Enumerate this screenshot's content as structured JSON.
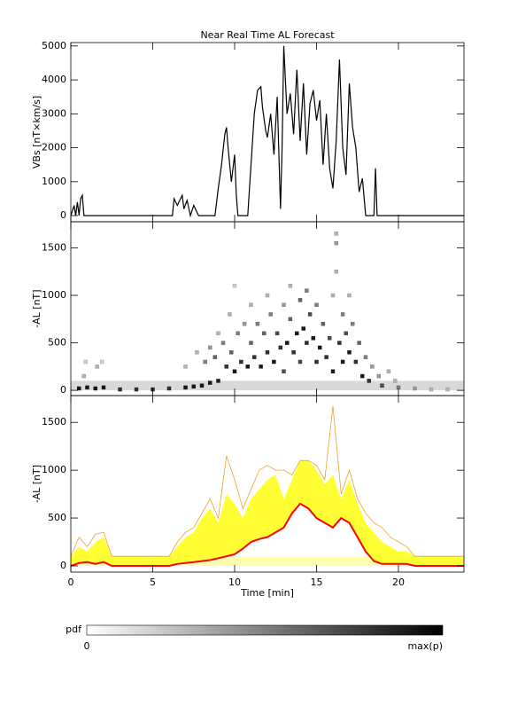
{
  "chart_data": [
    {
      "type": "line",
      "title": "Near Real Time AL Forecast",
      "ylabel": "VBs [nT×km/s]",
      "color": "#000000",
      "x": [
        0,
        0.2,
        0.3,
        0.4,
        0.5,
        0.6,
        0.7,
        0.8,
        0.9,
        1.0,
        6.2,
        6.3,
        6.5,
        6.6,
        6.8,
        6.9,
        7.1,
        7.3,
        7.5,
        7.8,
        8.8,
        9.0,
        9.2,
        9.4,
        9.5,
        9.6,
        9.8,
        10.0,
        10.1,
        10.2,
        10.8,
        11.0,
        11.2,
        11.4,
        11.6,
        11.7,
        11.9,
        12.0,
        12.2,
        12.4,
        12.6,
        12.8,
        12.9,
        13.0,
        13.2,
        13.4,
        13.6,
        13.8,
        14.0,
        14.2,
        14.4,
        14.6,
        14.8,
        15.0,
        15.2,
        15.4,
        15.6,
        15.8,
        16.0,
        16.2,
        16.4,
        16.6,
        16.8,
        17.0,
        17.2,
        17.4,
        17.6,
        17.8,
        18.0,
        18.5,
        18.6,
        18.7,
        20.0,
        24
      ],
      "values": [
        0,
        300,
        0,
        400,
        0,
        500,
        600,
        0,
        0,
        0,
        0,
        500,
        300,
        400,
        600,
        200,
        450,
        0,
        300,
        0,
        0,
        800,
        1500,
        2400,
        2600,
        2000,
        1000,
        1800,
        600,
        0,
        0,
        1500,
        3000,
        3700,
        3800,
        3200,
        2500,
        2300,
        3000,
        1800,
        3500,
        200,
        2000,
        5000,
        3000,
        3600,
        2400,
        4300,
        2200,
        3900,
        1800,
        3300,
        3700,
        2800,
        3400,
        1500,
        3000,
        1400,
        800,
        2200,
        4600,
        2000,
        1200,
        3900,
        2600,
        2000,
        700,
        1100,
        0,
        0,
        1400,
        0,
        0,
        0
      ],
      "xlim": [
        0,
        24
      ],
      "xticks": [
        0,
        5,
        10,
        15,
        20
      ],
      "xtick_labels": false,
      "ylim": [
        -180,
        5100
      ],
      "yticks": [
        0,
        1000,
        2000,
        3000,
        4000,
        5000
      ]
    },
    {
      "type": "heatmap",
      "ylabel": "-AL [nT]",
      "band": [
        0,
        100
      ],
      "band_p": 0.15,
      "cells": [
        [
          0.5,
          20,
          0.9
        ],
        [
          1,
          30,
          0.9
        ],
        [
          1.5,
          20,
          0.9
        ],
        [
          2,
          30,
          0.9
        ],
        [
          3,
          10,
          0.8
        ],
        [
          4,
          10,
          0.8
        ],
        [
          5,
          10,
          0.8
        ],
        [
          6,
          20,
          0.8
        ],
        [
          7,
          30,
          0.9
        ],
        [
          7.5,
          40,
          0.9
        ],
        [
          8,
          50,
          0.9
        ],
        [
          8.5,
          80,
          0.9
        ],
        [
          9,
          100,
          0.9
        ],
        [
          0.8,
          150,
          0.3
        ],
        [
          0.9,
          300,
          0.2
        ],
        [
          1.6,
          250,
          0.3
        ],
        [
          1.9,
          300,
          0.2
        ],
        [
          7,
          250,
          0.3
        ],
        [
          7.7,
          400,
          0.3
        ],
        [
          8.2,
          300,
          0.5
        ],
        [
          8.5,
          450,
          0.4
        ],
        [
          8.8,
          350,
          0.6
        ],
        [
          9,
          600,
          0.3
        ],
        [
          9.3,
          500,
          0.5
        ],
        [
          9.5,
          250,
          0.8
        ],
        [
          9.7,
          800,
          0.3
        ],
        [
          9.8,
          400,
          0.6
        ],
        [
          10,
          200,
          0.9
        ],
        [
          10,
          1100,
          0.2
        ],
        [
          10.2,
          600,
          0.5
        ],
        [
          10.4,
          300,
          0.8
        ],
        [
          10.6,
          700,
          0.4
        ],
        [
          10.8,
          250,
          0.9
        ],
        [
          11,
          500,
          0.6
        ],
        [
          11,
          900,
          0.3
        ],
        [
          11.2,
          350,
          0.8
        ],
        [
          11.4,
          700,
          0.5
        ],
        [
          11.6,
          250,
          0.9
        ],
        [
          11.8,
          600,
          0.6
        ],
        [
          12,
          400,
          0.8
        ],
        [
          12,
          1000,
          0.3
        ],
        [
          12.2,
          800,
          0.5
        ],
        [
          12.4,
          300,
          0.9
        ],
        [
          12.6,
          600,
          0.7
        ],
        [
          12.8,
          450,
          0.8
        ],
        [
          13,
          900,
          0.4
        ],
        [
          13,
          200,
          0.7
        ],
        [
          13.2,
          500,
          0.9
        ],
        [
          13.4,
          1100,
          0.3
        ],
        [
          13.4,
          750,
          0.6
        ],
        [
          13.6,
          400,
          0.8
        ],
        [
          13.8,
          600,
          0.9
        ],
        [
          14,
          950,
          0.6
        ],
        [
          14,
          300,
          0.7
        ],
        [
          14.2,
          650,
          0.9
        ],
        [
          14.4,
          500,
          0.8
        ],
        [
          14.4,
          1050,
          0.5
        ],
        [
          14.6,
          800,
          0.7
        ],
        [
          14.8,
          550,
          0.9
        ],
        [
          15,
          300,
          0.8
        ],
        [
          15,
          900,
          0.5
        ],
        [
          15.2,
          450,
          0.9
        ],
        [
          15.4,
          700,
          0.6
        ],
        [
          15.6,
          350,
          0.8
        ],
        [
          15.8,
          550,
          0.7
        ],
        [
          16,
          200,
          0.9
        ],
        [
          16,
          1000,
          0.3
        ],
        [
          16.2,
          1650,
          0.3
        ],
        [
          16.2,
          1550,
          0.4
        ],
        [
          16.2,
          1250,
          0.3
        ],
        [
          16.4,
          500,
          0.8
        ],
        [
          16.6,
          300,
          0.9
        ],
        [
          16.6,
          800,
          0.5
        ],
        [
          16.8,
          600,
          0.7
        ],
        [
          17,
          400,
          0.9
        ],
        [
          17,
          1000,
          0.3
        ],
        [
          17.2,
          700,
          0.5
        ],
        [
          17.4,
          300,
          0.8
        ],
        [
          17.6,
          500,
          0.6
        ],
        [
          17.8,
          150,
          0.9
        ],
        [
          18,
          350,
          0.5
        ],
        [
          18.2,
          100,
          0.8
        ],
        [
          18.4,
          250,
          0.4
        ],
        [
          18.8,
          150,
          0.4
        ],
        [
          19,
          50,
          0.7
        ],
        [
          19.4,
          200,
          0.3
        ],
        [
          19.8,
          100,
          0.3
        ],
        [
          20,
          30,
          0.5
        ],
        [
          21,
          20,
          0.4
        ],
        [
          22,
          10,
          0.3
        ],
        [
          23,
          10,
          0.3
        ]
      ],
      "xlim": [
        0,
        24
      ],
      "xticks": [
        0,
        5,
        10,
        15,
        20
      ],
      "xtick_labels": false,
      "ylim": [
        -55,
        1775
      ],
      "yticks": [
        0,
        500,
        1000,
        1500
      ]
    },
    {
      "type": "envelope",
      "ylabel": "-AL [nT]",
      "xlabel": "Time [min]",
      "band": [
        0,
        100
      ],
      "x": [
        0,
        0.5,
        1,
        1.5,
        2,
        2.5,
        3,
        3.5,
        4,
        4.5,
        5,
        5.5,
        6,
        6.5,
        7,
        7.5,
        8,
        8.5,
        9,
        9.5,
        10,
        10.5,
        11,
        11.5,
        12,
        12.5,
        13,
        13.5,
        14,
        14.5,
        15,
        15.5,
        16,
        16.5,
        17,
        17.5,
        18,
        18.5,
        19,
        19.5,
        20,
        20.5,
        21,
        21.5,
        22,
        22.5,
        23,
        23.5,
        24
      ],
      "series": [
        {
          "name": "upper",
          "color": "#ffff33",
          "values": [
            100,
            200,
            150,
            250,
            300,
            100,
            100,
            100,
            100,
            100,
            100,
            100,
            100,
            200,
            300,
            350,
            500,
            600,
            450,
            750,
            650,
            500,
            700,
            800,
            900,
            950,
            700,
            900,
            1100,
            1100,
            1000,
            850,
            950,
            700,
            900,
            650,
            450,
            350,
            250,
            200,
            150,
            150,
            100,
            100,
            100,
            100,
            100,
            100,
            100
          ]
        },
        {
          "name": "max",
          "color": "#f0a030",
          "values": [
            100,
            300,
            200,
            330,
            350,
            100,
            100,
            100,
            100,
            100,
            100,
            100,
            100,
            250,
            350,
            400,
            550,
            700,
            500,
            1150,
            900,
            600,
            800,
            1000,
            1050,
            1000,
            1000,
            950,
            1100,
            1100,
            1050,
            900,
            1670,
            750,
            1000,
            700,
            550,
            450,
            400,
            300,
            250,
            200,
            100,
            100,
            100,
            100,
            100,
            100,
            100
          ]
        },
        {
          "name": "median",
          "color": "#ff0000",
          "values": [
            0,
            30,
            40,
            20,
            40,
            0,
            0,
            0,
            0,
            0,
            0,
            0,
            0,
            20,
            30,
            40,
            50,
            60,
            80,
            100,
            120,
            180,
            250,
            280,
            300,
            350,
            400,
            550,
            650,
            600,
            500,
            450,
            400,
            500,
            450,
            300,
            150,
            50,
            20,
            20,
            20,
            20,
            0,
            0,
            0,
            0,
            0,
            0,
            0
          ]
        }
      ],
      "xlim": [
        0,
        24
      ],
      "xticks": [
        0,
        5,
        10,
        15,
        20
      ],
      "xtick_labels": true,
      "ylim": [
        -65,
        1780
      ],
      "yticks": [
        0,
        500,
        1000,
        1500
      ]
    }
  ],
  "colorbar": {
    "label": "pdf",
    "min_label": "0",
    "max_label": "max(p)"
  }
}
